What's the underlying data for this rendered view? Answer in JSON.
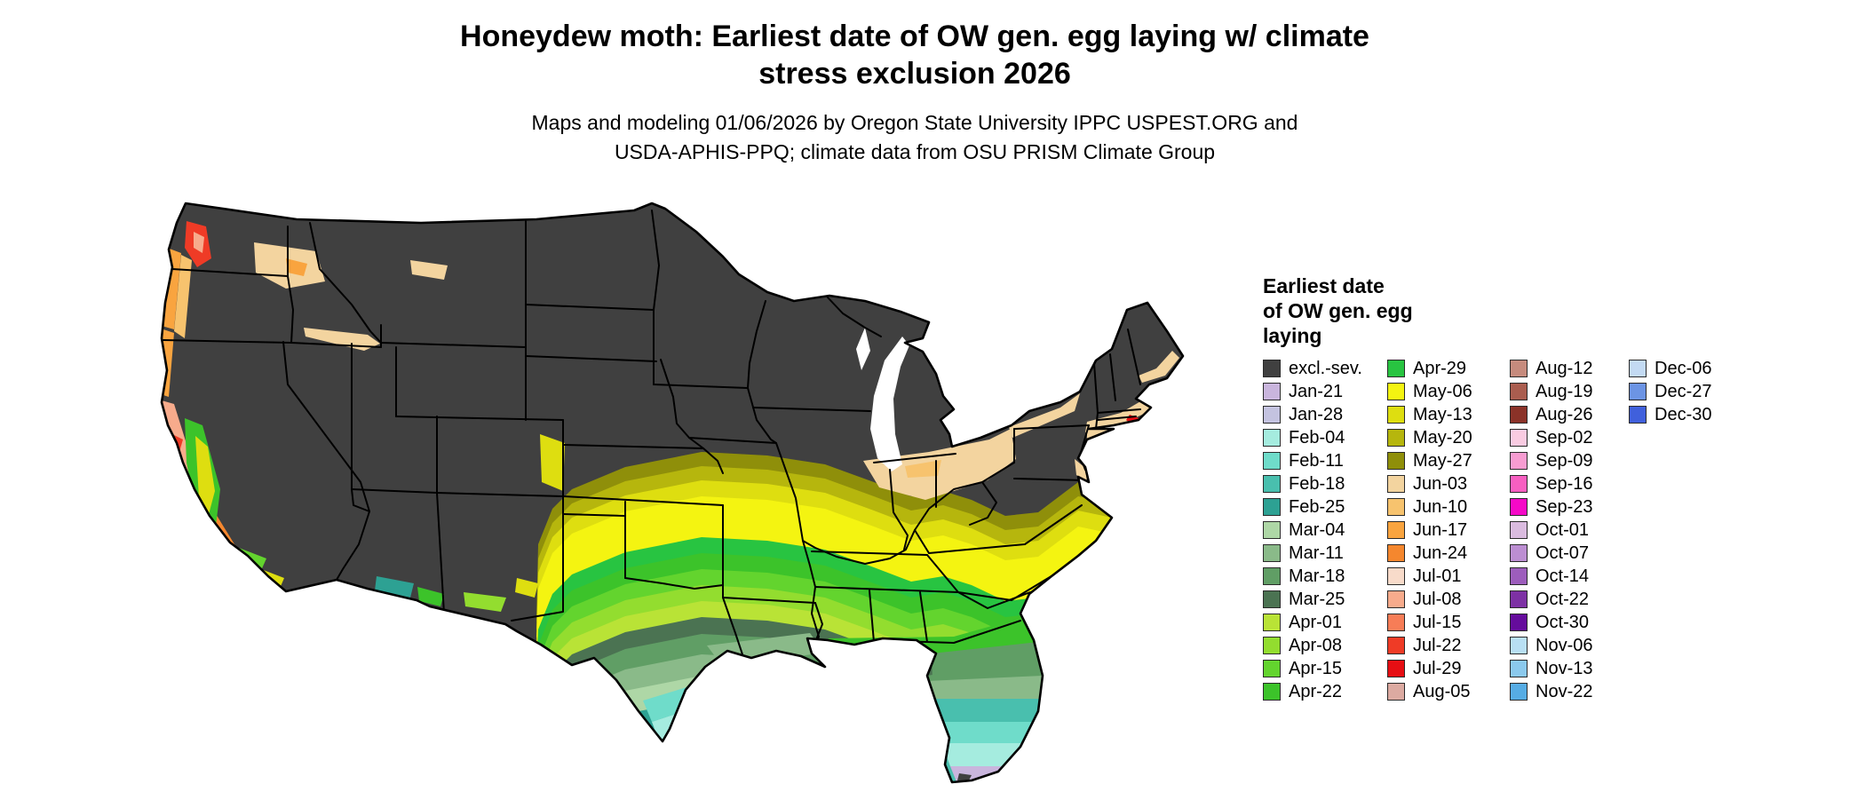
{
  "title": {
    "line1": "Honeydew moth: Earliest date of OW gen. egg laying w/ climate",
    "line2": "stress exclusion 2026"
  },
  "subtitle": {
    "line1": "Maps and modeling 01/06/2026 by Oregon State University IPPC USPEST.ORG and",
    "line2": "USDA-APHIS-PPQ; climate data from OSU PRISM Climate Group"
  },
  "legend": {
    "title_lines": [
      "Earliest date",
      "of OW gen. egg",
      "laying"
    ],
    "per_column": 15,
    "entries": [
      {
        "label": "excl.-sev.",
        "color": "#404040"
      },
      {
        "label": "Jan-21",
        "color": "#c9b5dd"
      },
      {
        "label": "Jan-28",
        "color": "#c4c3e0"
      },
      {
        "label": "Feb-04",
        "color": "#a5ecdf"
      },
      {
        "label": "Feb-11",
        "color": "#6fdcca"
      },
      {
        "label": "Feb-18",
        "color": "#49bfae"
      },
      {
        "label": "Feb-25",
        "color": "#2da193"
      },
      {
        "label": "Mar-04",
        "color": "#aed7a6"
      },
      {
        "label": "Mar-11",
        "color": "#8aba89"
      },
      {
        "label": "Mar-18",
        "color": "#609e65"
      },
      {
        "label": "Mar-25",
        "color": "#4b7352"
      },
      {
        "label": "Apr-01",
        "color": "#b9e336"
      },
      {
        "label": "Apr-08",
        "color": "#93dd2f"
      },
      {
        "label": "Apr-15",
        "color": "#63d42e"
      },
      {
        "label": "Apr-22",
        "color": "#3cc32a"
      },
      {
        "label": "Apr-29",
        "color": "#28c441"
      },
      {
        "label": "May-06",
        "color": "#f4f411"
      },
      {
        "label": "May-13",
        "color": "#dede10"
      },
      {
        "label": "May-20",
        "color": "#b6b60d"
      },
      {
        "label": "May-27",
        "color": "#8f8f0a"
      },
      {
        "label": "Jun-03",
        "color": "#f3d49f"
      },
      {
        "label": "Jun-10",
        "color": "#f7c36e"
      },
      {
        "label": "Jun-17",
        "color": "#f9a43f"
      },
      {
        "label": "Jun-24",
        "color": "#f5872e"
      },
      {
        "label": "Jul-01",
        "color": "#f8dbca"
      },
      {
        "label": "Jul-08",
        "color": "#f7ab8c"
      },
      {
        "label": "Jul-15",
        "color": "#f77d57"
      },
      {
        "label": "Jul-22",
        "color": "#ef3b26"
      },
      {
        "label": "Jul-29",
        "color": "#e60e13"
      },
      {
        "label": "Aug-05",
        "color": "#dcaaa1"
      },
      {
        "label": "Aug-12",
        "color": "#c68b7d"
      },
      {
        "label": "Aug-19",
        "color": "#aa5d4f"
      },
      {
        "label": "Aug-26",
        "color": "#8b3228"
      },
      {
        "label": "Sep-02",
        "color": "#f9cbe1"
      },
      {
        "label": "Sep-09",
        "color": "#f79cd1"
      },
      {
        "label": "Sep-16",
        "color": "#f75fc1"
      },
      {
        "label": "Sep-23",
        "color": "#f509c7"
      },
      {
        "label": "Oct-01",
        "color": "#dabbdf"
      },
      {
        "label": "Oct-07",
        "color": "#bc8ed2"
      },
      {
        "label": "Oct-14",
        "color": "#9d5dbc"
      },
      {
        "label": "Oct-22",
        "color": "#7d31a4"
      },
      {
        "label": "Oct-30",
        "color": "#650c9c"
      },
      {
        "label": "Nov-06",
        "color": "#b8dff3"
      },
      {
        "label": "Nov-13",
        "color": "#8bc9ed"
      },
      {
        "label": "Nov-22",
        "color": "#56ace4"
      },
      {
        "label": "Dec-06",
        "color": "#c3daf3"
      },
      {
        "label": "Dec-27",
        "color": "#6c94e4"
      },
      {
        "label": "Dec-30",
        "color": "#4060dc"
      }
    ]
  }
}
